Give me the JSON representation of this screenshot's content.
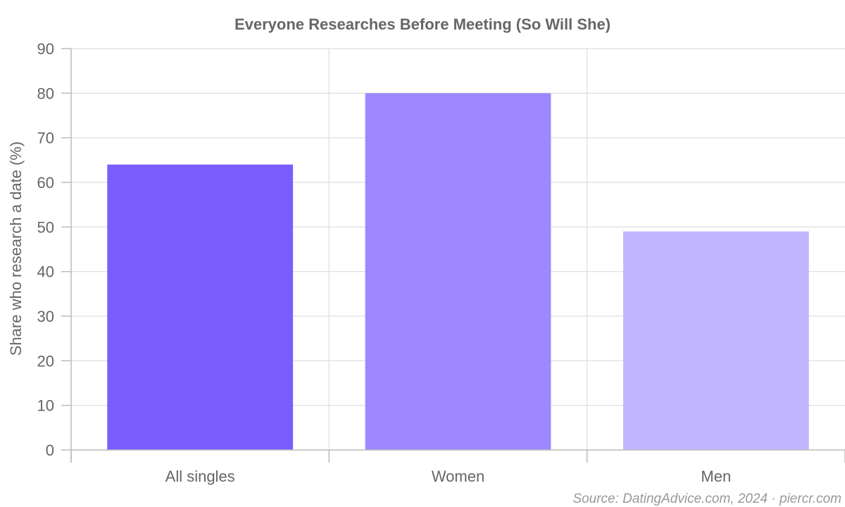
{
  "chart_data": {
    "type": "bar",
    "title": "Everyone Researches Before Meeting (So Will She)",
    "ylabel": "Share who research a date (%)",
    "xlabel": "",
    "categories": [
      "All singles",
      "Women",
      "Men"
    ],
    "values": [
      64,
      80,
      49
    ],
    "colors": [
      "#7b5cff",
      "#9d88ff",
      "#c2b5ff"
    ],
    "ylim": [
      0,
      90
    ],
    "yticks": [
      0,
      10,
      20,
      30,
      40,
      50,
      60,
      70,
      80,
      90
    ],
    "grid": true,
    "legend": "none"
  },
  "source": "Source: DatingAdvice.com, 2024 · piercr.com"
}
